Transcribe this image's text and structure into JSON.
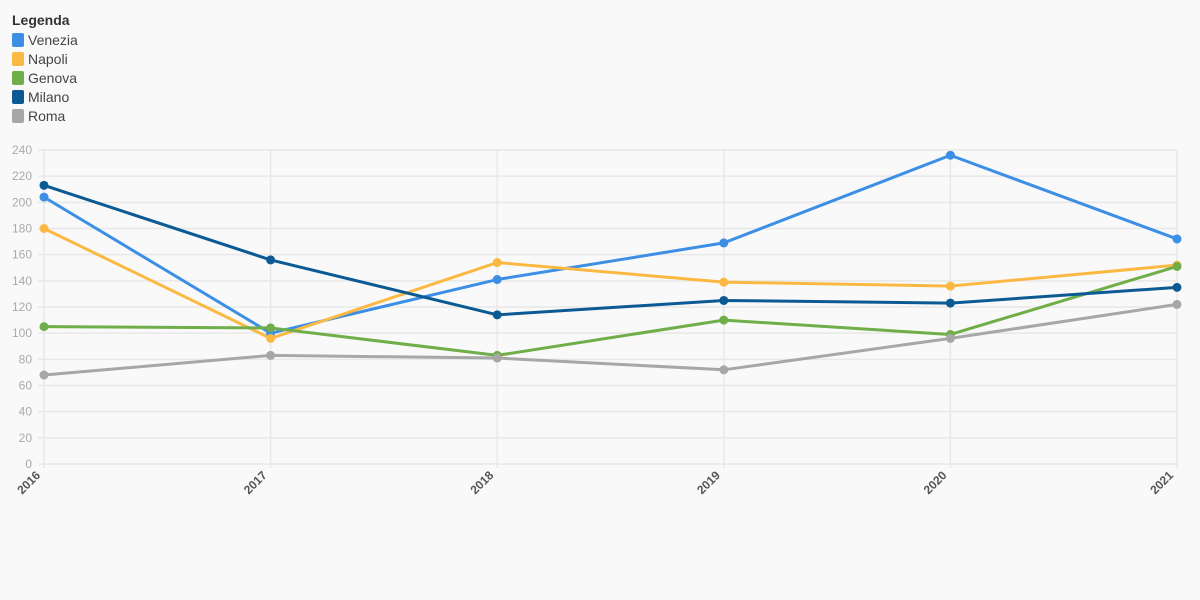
{
  "legend": {
    "title": "Legenda"
  },
  "chart_data": {
    "type": "line",
    "x": [
      "2016",
      "2017",
      "2018",
      "2019",
      "2020",
      "2021"
    ],
    "ylim": [
      0,
      240
    ],
    "yticks": [
      0,
      20,
      40,
      60,
      80,
      100,
      120,
      140,
      160,
      180,
      200,
      220,
      240
    ],
    "grid": true,
    "legend_position": "top-left",
    "series": [
      {
        "name": "Venezia",
        "color": "#3d8fe6",
        "values": [
          204,
          100,
          141,
          169,
          236,
          172
        ]
      },
      {
        "name": "Napoli",
        "color": "#fbb943",
        "values": [
          180,
          96,
          154,
          139,
          136,
          152
        ]
      },
      {
        "name": "Genova",
        "color": "#6fae49",
        "values": [
          105,
          104,
          83,
          110,
          99,
          151
        ]
      },
      {
        "name": "Milano",
        "color": "#0b5a94",
        "values": [
          213,
          156,
          114,
          125,
          123,
          135
        ]
      },
      {
        "name": "Roma",
        "color": "#a7a7a7",
        "values": [
          68,
          83,
          81,
          72,
          96,
          122
        ]
      }
    ]
  }
}
